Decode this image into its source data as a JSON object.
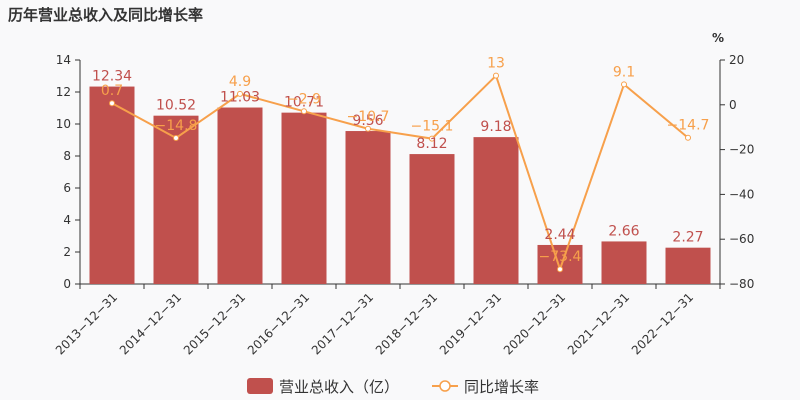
{
  "title": "历年营业总收入及同比增长率",
  "chart_data": {
    "type": "bar",
    "categories": [
      "2013-12-31",
      "2014-12-31",
      "2015-12-31",
      "2016-12-31",
      "2017-12-31",
      "2018-12-31",
      "2019-12-31",
      "2020-12-31",
      "2021-12-31",
      "2022-12-31"
    ],
    "series": [
      {
        "name": "营业总收入（亿）",
        "type": "bar",
        "axis": "left",
        "color": "#c0504d",
        "values": [
          12.34,
          10.52,
          11.03,
          10.71,
          9.56,
          8.12,
          9.18,
          2.44,
          2.66,
          2.27
        ],
        "labels": [
          "12.34",
          "10.52",
          "11.03",
          "10.71",
          "9.56",
          "8.12",
          "9.18",
          "2.44",
          "2.66",
          "2.27"
        ]
      },
      {
        "name": "同比增长率",
        "type": "line",
        "axis": "right",
        "color": "#f7a04b",
        "values": [
          0.7,
          -14.8,
          4.9,
          -2.9,
          -10.7,
          -15.1,
          13,
          -73.4,
          9.1,
          -14.7
        ],
        "labels": [
          "0.7",
          "-14.8",
          "4.9",
          "-2.9",
          "-10.7",
          "-15.1",
          "13",
          "-73.4",
          "9.1",
          "-14.7"
        ]
      }
    ],
    "y_left": {
      "min": 0,
      "max": 14,
      "ticks": [
        "0",
        "2",
        "4",
        "6",
        "8",
        "10",
        "12",
        "14"
      ]
    },
    "y_right": {
      "min": -80,
      "max": 20,
      "ticks": [
        "-80",
        "-60",
        "-40",
        "-20",
        "0",
        "20"
      ],
      "unit": "%"
    },
    "legend_position": "bottom-center",
    "grid": false
  }
}
